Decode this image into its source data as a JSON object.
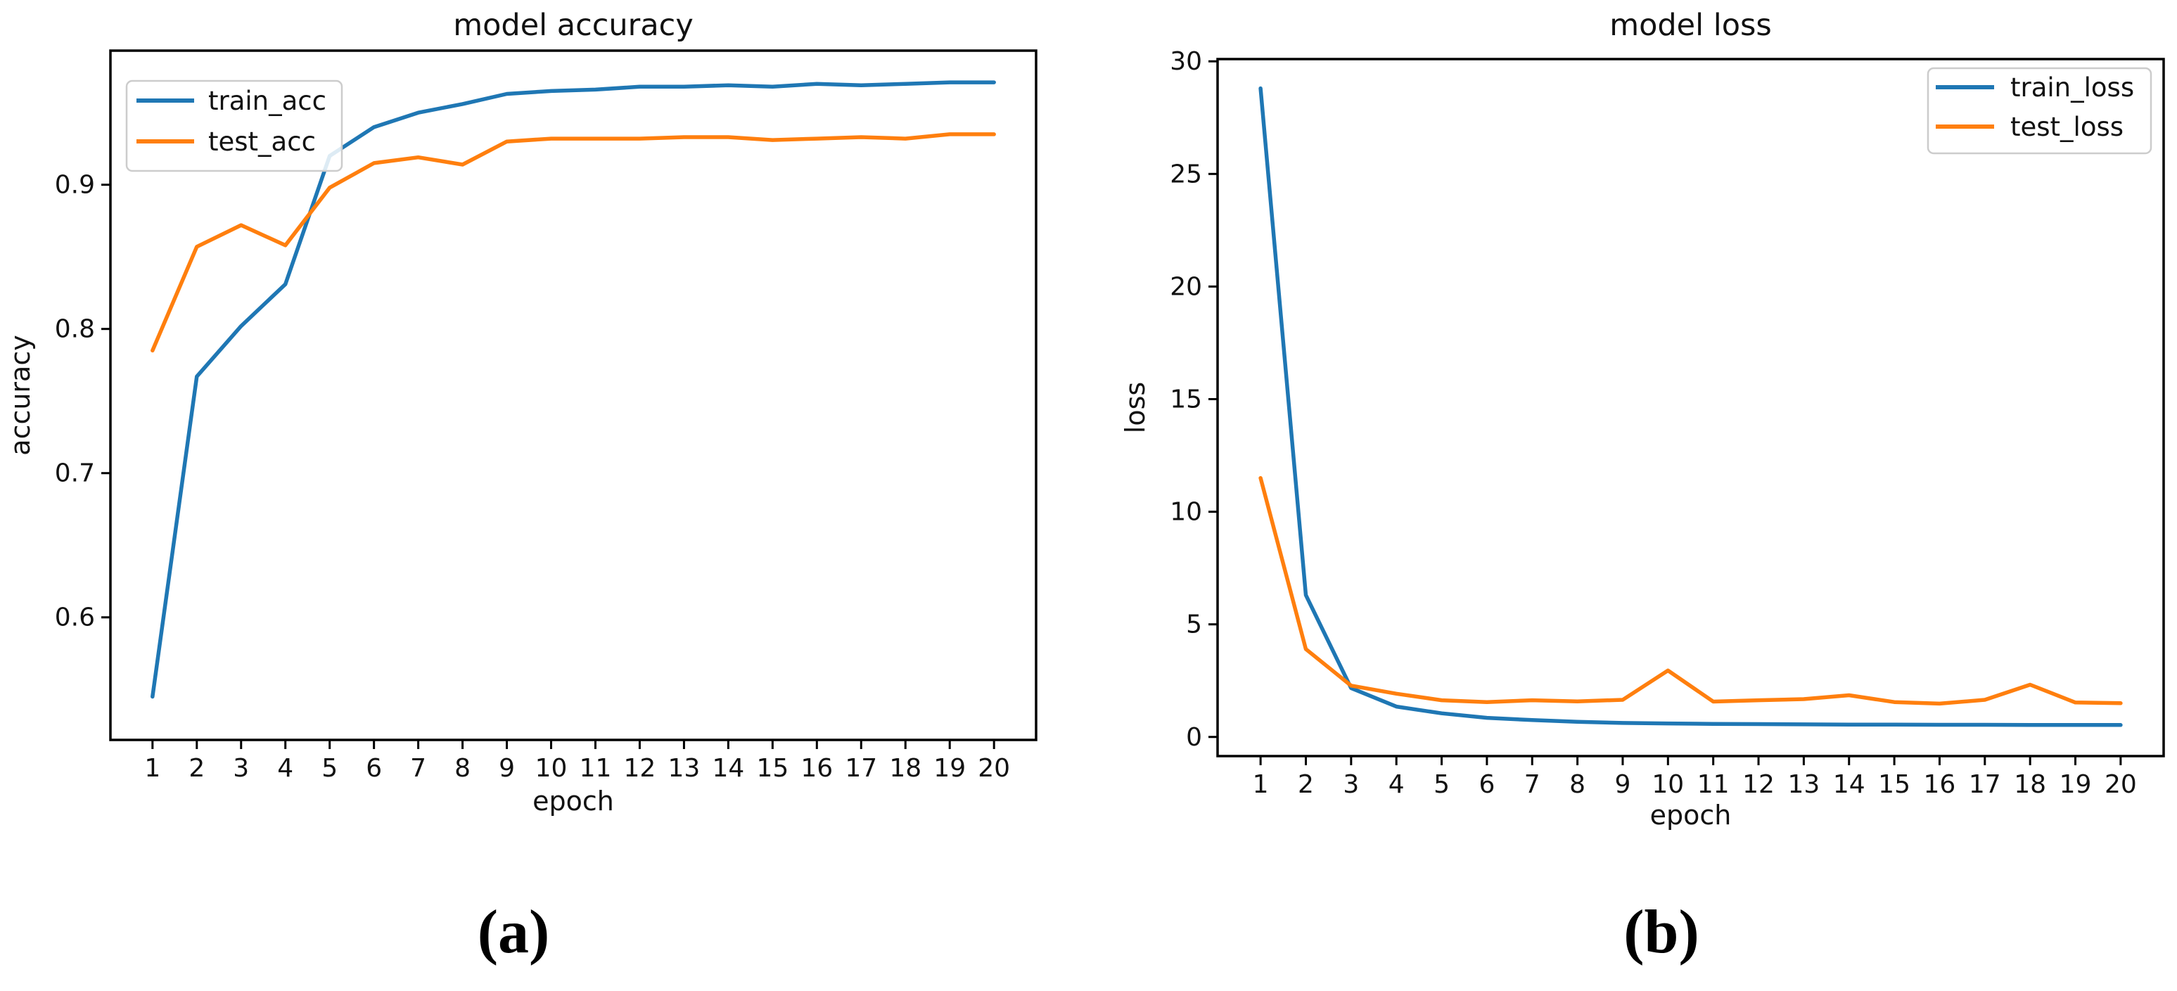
{
  "figure": {
    "captions": [
      "(a)",
      "(b)"
    ]
  },
  "styles": {
    "train_color": "#1f77b4",
    "test_color": "#ff7f0e",
    "spine_color": "#000000",
    "text_color": "#111111",
    "legend_border_color": "#cccccc",
    "background": "#ffffff"
  },
  "chart_data": [
    {
      "id": "accuracy",
      "type": "line",
      "title": "model accuracy",
      "xlabel": "epoch",
      "ylabel": "accuracy",
      "grid": false,
      "legend_position": "upper-left",
      "x": [
        1,
        2,
        3,
        4,
        5,
        6,
        7,
        8,
        9,
        10,
        11,
        12,
        13,
        14,
        15,
        16,
        17,
        18,
        19,
        20
      ],
      "xtick_labels": [
        "1",
        "2",
        "3",
        "4",
        "5",
        "6",
        "7",
        "8",
        "9",
        "10",
        "11",
        "12",
        "13",
        "14",
        "15",
        "16",
        "17",
        "18",
        "19",
        "20"
      ],
      "xlim": [
        0.05,
        20.95
      ],
      "ylim": [
        0.515,
        0.993
      ],
      "yticks": [
        0.6,
        0.7,
        0.8,
        0.9
      ],
      "ytick_labels": [
        "0.6",
        "0.7",
        "0.8",
        "0.9"
      ],
      "series": [
        {
          "name": "train_acc",
          "color": "#1f77b4",
          "values": [
            0.545,
            0.767,
            0.802,
            0.831,
            0.92,
            0.94,
            0.95,
            0.956,
            0.963,
            0.965,
            0.966,
            0.968,
            0.968,
            0.969,
            0.968,
            0.97,
            0.969,
            0.97,
            0.971,
            0.971
          ]
        },
        {
          "name": "test_acc",
          "color": "#ff7f0e",
          "values": [
            0.785,
            0.857,
            0.872,
            0.858,
            0.898,
            0.915,
            0.919,
            0.914,
            0.93,
            0.932,
            0.932,
            0.932,
            0.933,
            0.933,
            0.931,
            0.932,
            0.933,
            0.932,
            0.935,
            0.935
          ]
        }
      ]
    },
    {
      "id": "loss",
      "type": "line",
      "title": "model loss",
      "xlabel": "epoch",
      "ylabel": "loss",
      "grid": false,
      "legend_position": "upper-right",
      "x": [
        1,
        2,
        3,
        4,
        5,
        6,
        7,
        8,
        9,
        10,
        11,
        12,
        13,
        14,
        15,
        16,
        17,
        18,
        19,
        20
      ],
      "xtick_labels": [
        "1",
        "2",
        "3",
        "4",
        "5",
        "6",
        "7",
        "8",
        "9",
        "10",
        "11",
        "12",
        "13",
        "14",
        "15",
        "16",
        "17",
        "18",
        "19",
        "20"
      ],
      "xlim": [
        0.05,
        20.95
      ],
      "ylim": [
        -0.85,
        30.1
      ],
      "yticks": [
        0,
        5,
        10,
        15,
        20,
        25,
        30
      ],
      "ytick_labels": [
        "0",
        "5",
        "10",
        "15",
        "20",
        "25",
        "30"
      ],
      "series": [
        {
          "name": "train_loss",
          "color": "#1f77b4",
          "values": [
            28.8,
            6.3,
            2.17,
            1.35,
            1.05,
            0.85,
            0.75,
            0.67,
            0.62,
            0.6,
            0.58,
            0.57,
            0.56,
            0.55,
            0.55,
            0.54,
            0.54,
            0.53,
            0.53,
            0.53
          ]
        },
        {
          "name": "test_loss",
          "color": "#ff7f0e",
          "values": [
            11.5,
            3.9,
            2.28,
            1.92,
            1.63,
            1.55,
            1.63,
            1.58,
            1.65,
            2.95,
            1.57,
            1.63,
            1.68,
            1.85,
            1.55,
            1.48,
            1.65,
            2.32,
            1.53,
            1.5
          ]
        }
      ]
    }
  ]
}
